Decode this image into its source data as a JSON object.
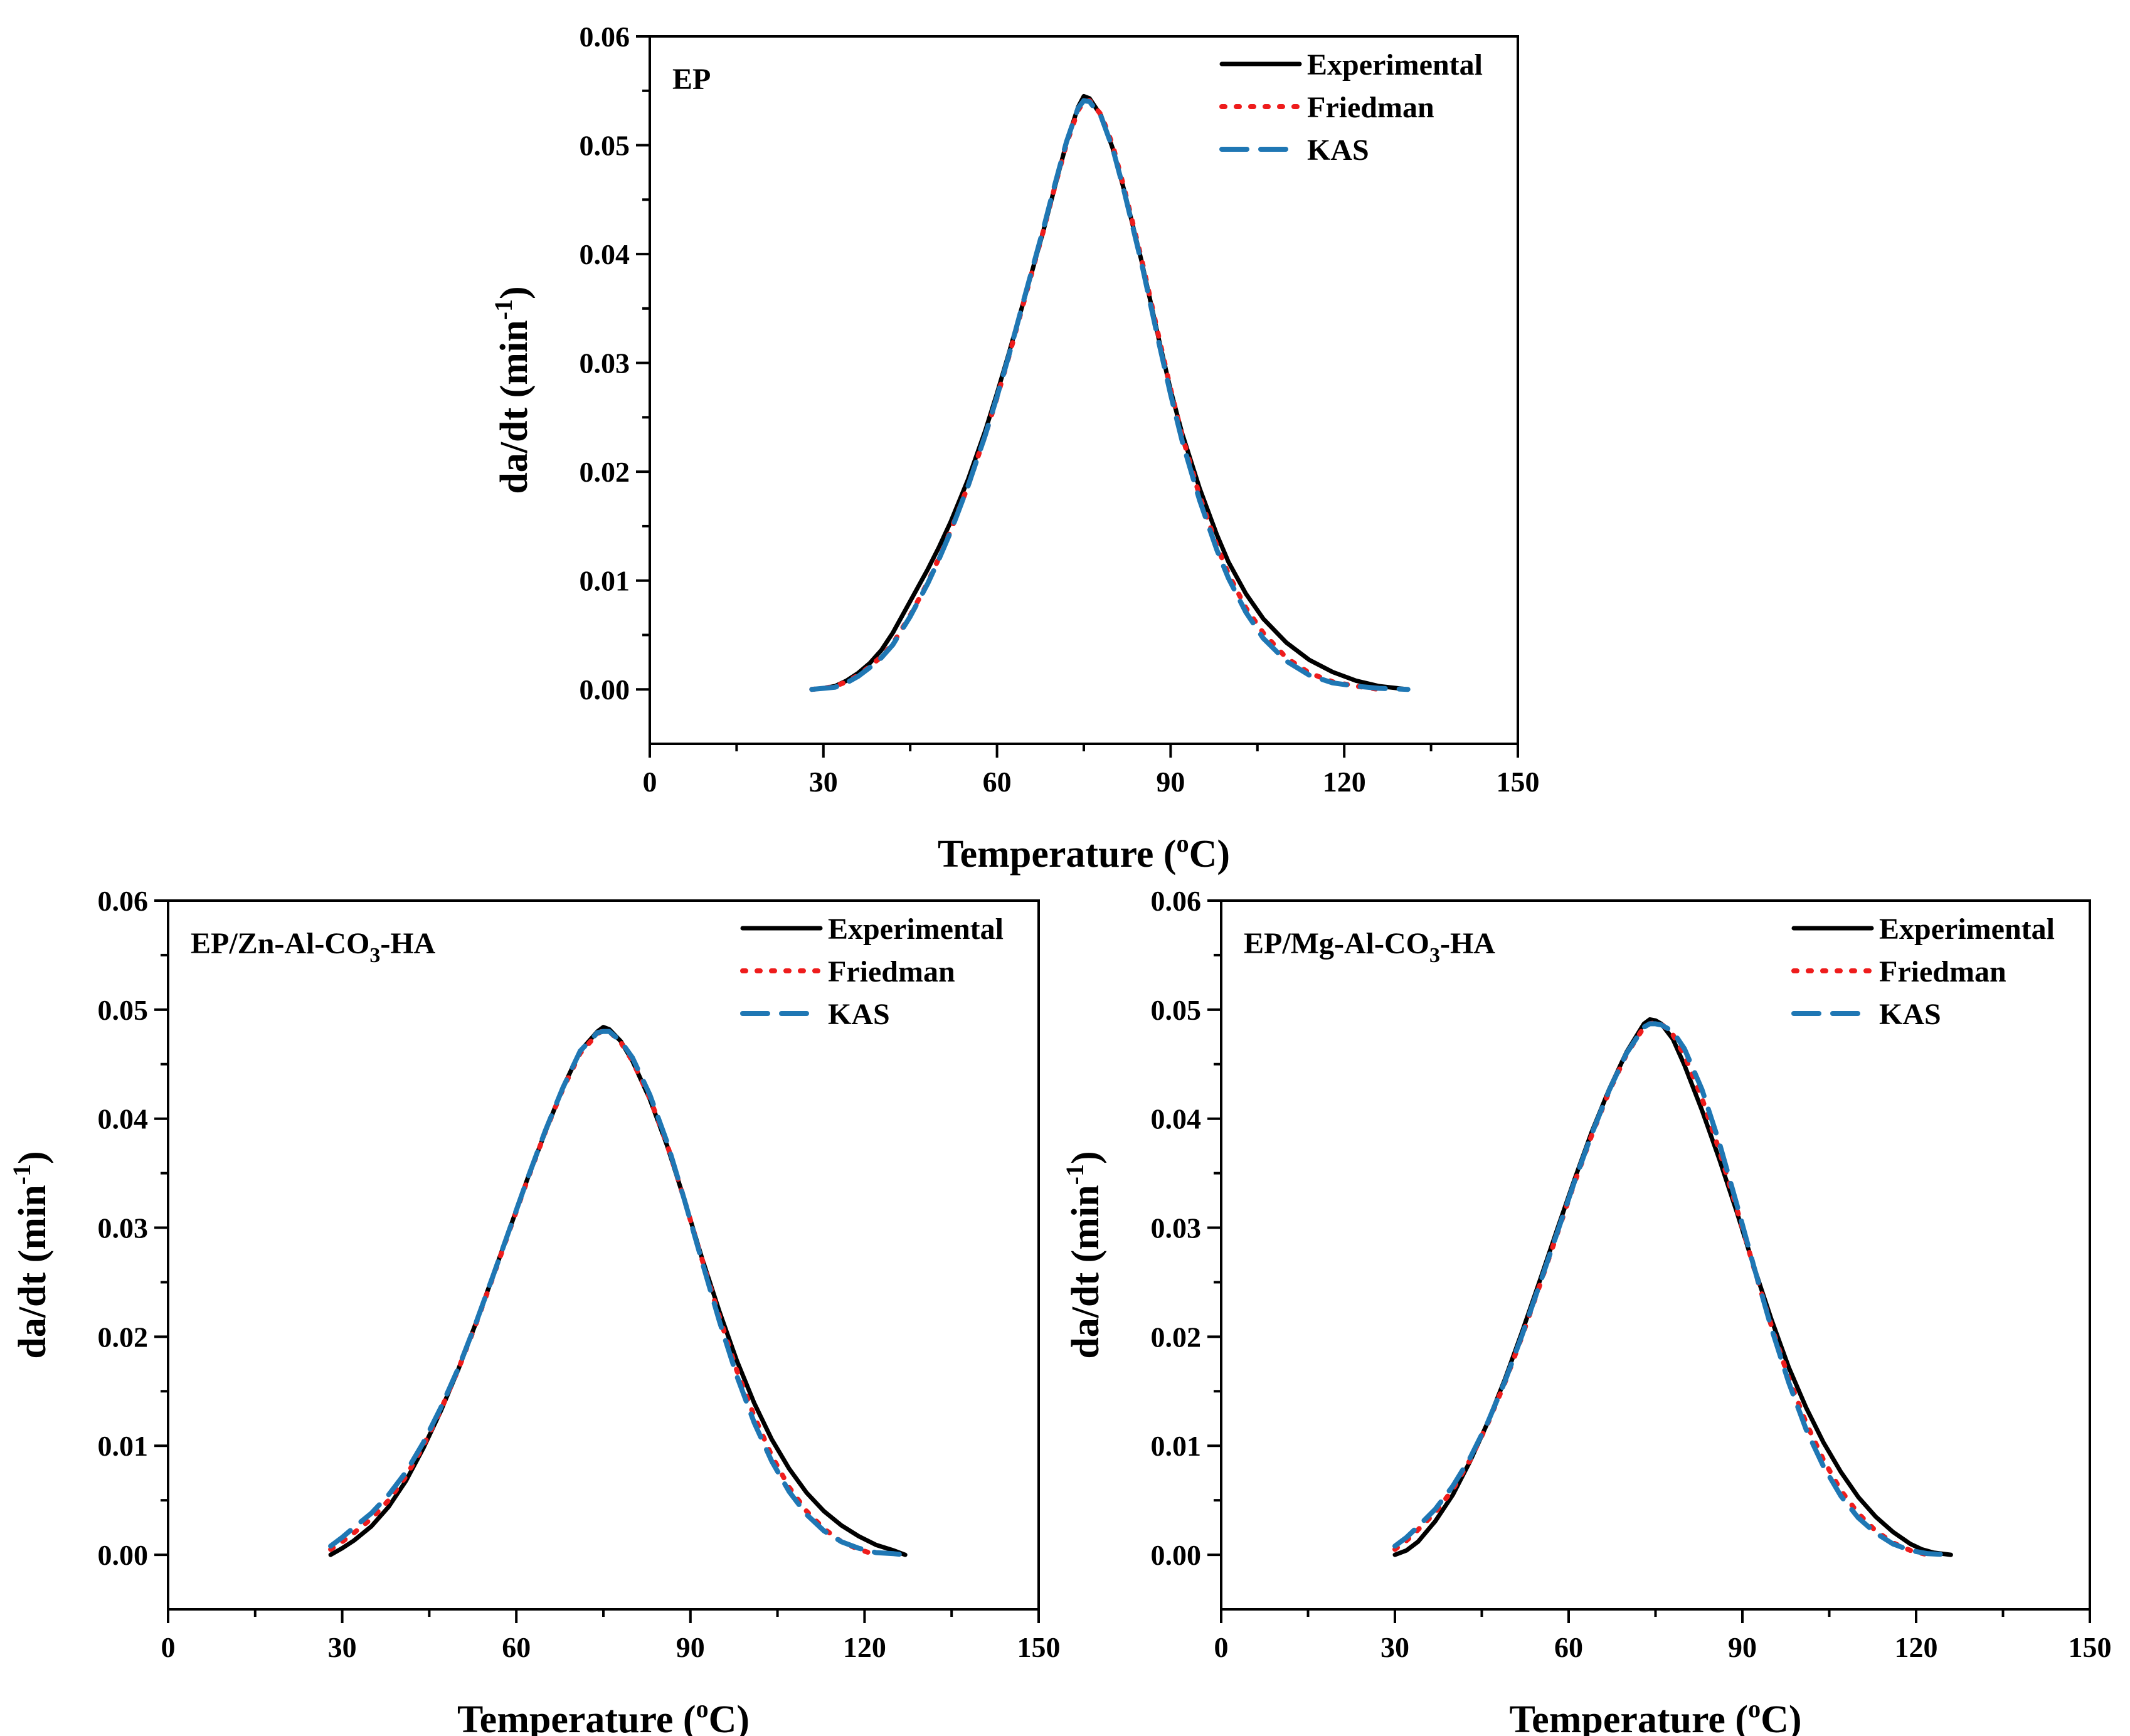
{
  "chart_data": [
    {
      "type": "line",
      "title": "EP",
      "xlabel": "Temperature (oC)",
      "xlabel_parts": {
        "main": "Temperature (",
        "sup": "o",
        "tail": "C)"
      },
      "ylabel": "da/dt (min-1)",
      "ylabel_parts": {
        "main": "da/dt (min",
        "sup": "-1",
        "tail": ")"
      },
      "xlim": [
        0,
        150
      ],
      "ylim": [
        -0.005,
        0.06
      ],
      "xticks": [
        "0",
        "30",
        "60",
        "90",
        "120",
        "150"
      ],
      "yticks": [
        "0.00",
        "0.01",
        "0.02",
        "0.03",
        "0.04",
        "0.05",
        "0.06"
      ],
      "legend_position": "top-right",
      "series": [
        {
          "name": "Experimental",
          "color": "#000000",
          "style": "solid",
          "x": [
            28,
            30,
            32,
            34,
            36,
            38,
            40,
            42,
            45,
            48,
            50,
            52,
            55,
            58,
            60,
            62,
            65,
            68,
            70,
            72,
            74,
            75,
            76,
            78,
            80,
            82,
            85,
            88,
            90,
            92,
            95,
            98,
            100,
            103,
            106,
            110,
            114,
            118,
            122,
            126,
            131
          ],
          "y": [
            0.0,
            0.0001,
            0.0003,
            0.0008,
            0.0015,
            0.0024,
            0.0036,
            0.0052,
            0.0081,
            0.011,
            0.0131,
            0.0154,
            0.0193,
            0.0238,
            0.0272,
            0.0308,
            0.0364,
            0.0421,
            0.0462,
            0.0502,
            0.0535,
            0.0545,
            0.0543,
            0.0527,
            0.0497,
            0.0458,
            0.0393,
            0.0321,
            0.0275,
            0.0235,
            0.0185,
            0.0142,
            0.0117,
            0.0088,
            0.0065,
            0.0043,
            0.0027,
            0.0016,
            0.0008,
            0.0003,
            0.0
          ]
        },
        {
          "name": "Friedman",
          "color": "#ee1c1c",
          "style": "dotted",
          "x": [
            28,
            30,
            32,
            34,
            36,
            38,
            40,
            42,
            45,
            48,
            50,
            52,
            55,
            58,
            60,
            62,
            65,
            68,
            70,
            72,
            74,
            75,
            76,
            78,
            80,
            82,
            85,
            88,
            90,
            92,
            95,
            98,
            100,
            103,
            106,
            110,
            114,
            118,
            122,
            126
          ],
          "y": [
            0.0,
            0.0001,
            0.0003,
            0.0007,
            0.0013,
            0.0021,
            0.003,
            0.0042,
            0.0068,
            0.0098,
            0.0121,
            0.0146,
            0.0187,
            0.0234,
            0.0268,
            0.0305,
            0.0363,
            0.0421,
            0.0462,
            0.0501,
            0.0532,
            0.054,
            0.0541,
            0.0528,
            0.05,
            0.046,
            0.0395,
            0.0323,
            0.0276,
            0.0233,
            0.0178,
            0.0132,
            0.0106,
            0.0075,
            0.0052,
            0.0029,
            0.0015,
            0.0007,
            0.0003,
            0.0
          ]
        },
        {
          "name": "KAS",
          "color": "#1f77b4",
          "style": "dashed",
          "x": [
            28,
            30,
            32,
            34,
            36,
            38,
            40,
            42,
            45,
            48,
            50,
            52,
            55,
            58,
            60,
            62,
            65,
            68,
            70,
            72,
            74,
            75,
            76,
            78,
            80,
            82,
            85,
            88,
            90,
            92,
            95,
            98,
            100,
            103,
            106,
            110,
            114,
            118,
            122,
            126,
            131
          ],
          "y": [
            0.0,
            0.0001,
            0.0002,
            0.0006,
            0.0012,
            0.002,
            0.0029,
            0.0041,
            0.0067,
            0.0097,
            0.012,
            0.0145,
            0.0187,
            0.0234,
            0.0269,
            0.0306,
            0.0365,
            0.0423,
            0.0464,
            0.0503,
            0.0534,
            0.0541,
            0.054,
            0.0526,
            0.0497,
            0.0457,
            0.0391,
            0.0318,
            0.0271,
            0.0228,
            0.0174,
            0.0128,
            0.0102,
            0.0071,
            0.0047,
            0.0026,
            0.0013,
            0.0006,
            0.0003,
            0.0001,
            0.0
          ]
        }
      ]
    },
    {
      "type": "line",
      "title": "EP/Zn-Al-CO3-HA",
      "title_parts": {
        "main": "EP/Zn-Al-CO",
        "sub": "3",
        "tail": "-HA"
      },
      "xlabel": "Temperature (oC)",
      "xlabel_parts": {
        "main": "Temperature (",
        "sup": "o",
        "tail": "C)"
      },
      "ylabel": "da/dt (min-1)",
      "ylabel_parts": {
        "main": "da/dt (min",
        "sup": "-1",
        "tail": ")"
      },
      "xlim": [
        0,
        150
      ],
      "ylim": [
        -0.005,
        0.06
      ],
      "xticks": [
        "0",
        "30",
        "60",
        "90",
        "120",
        "150"
      ],
      "yticks": [
        "0.00",
        "0.01",
        "0.02",
        "0.03",
        "0.04",
        "0.05",
        "0.06"
      ],
      "legend_position": "top-right",
      "series": [
        {
          "name": "Experimental",
          "color": "#000000",
          "style": "solid",
          "x": [
            28,
            30,
            32,
            35,
            38,
            41,
            44,
            47,
            50,
            53,
            56,
            59,
            62,
            65,
            68,
            71,
            74,
            75,
            76,
            78,
            80,
            83,
            86,
            89,
            92,
            95,
            98,
            101,
            104,
            107,
            110,
            113,
            116,
            119,
            122,
            125,
            127
          ],
          "y": [
            0.0,
            0.0006,
            0.0013,
            0.0026,
            0.0044,
            0.0068,
            0.0098,
            0.0132,
            0.017,
            0.0212,
            0.0256,
            0.0301,
            0.0346,
            0.0388,
            0.0428,
            0.0462,
            0.048,
            0.0484,
            0.0482,
            0.0471,
            0.0453,
            0.0418,
            0.0375,
            0.0325,
            0.0272,
            0.0223,
            0.0178,
            0.0139,
            0.0106,
            0.0079,
            0.0057,
            0.004,
            0.0027,
            0.0017,
            0.0009,
            0.0004,
            0.0
          ]
        },
        {
          "name": "Friedman",
          "color": "#ee1c1c",
          "style": "dotted",
          "x": [
            28,
            30,
            32,
            35,
            38,
            41,
            44,
            47,
            50,
            53,
            56,
            59,
            62,
            65,
            68,
            71,
            74,
            75,
            76,
            78,
            80,
            83,
            86,
            89,
            92,
            95,
            98,
            101,
            104,
            107,
            110,
            113,
            116,
            119,
            122
          ],
          "y": [
            0.0005,
            0.0012,
            0.002,
            0.0033,
            0.005,
            0.0072,
            0.01,
            0.0133,
            0.017,
            0.0211,
            0.0255,
            0.03,
            0.0345,
            0.0388,
            0.0427,
            0.046,
            0.0478,
            0.0481,
            0.048,
            0.047,
            0.0453,
            0.0419,
            0.0376,
            0.0325,
            0.0271,
            0.0218,
            0.0169,
            0.0127,
            0.0091,
            0.0062,
            0.004,
            0.0024,
            0.0012,
            0.0005,
            0.0
          ]
        },
        {
          "name": "KAS",
          "color": "#1f77b4",
          "style": "dashed",
          "x": [
            28,
            30,
            32,
            35,
            38,
            41,
            44,
            47,
            50,
            53,
            56,
            59,
            62,
            65,
            68,
            71,
            74,
            75,
            76,
            78,
            80,
            83,
            86,
            89,
            92,
            95,
            98,
            101,
            104,
            107,
            110,
            113,
            116,
            119,
            122,
            125,
            127
          ],
          "y": [
            0.0008,
            0.0016,
            0.0025,
            0.0038,
            0.0055,
            0.0076,
            0.0103,
            0.0135,
            0.0171,
            0.0212,
            0.0256,
            0.0301,
            0.0346,
            0.0389,
            0.0428,
            0.0462,
            0.0479,
            0.048,
            0.048,
            0.0471,
            0.0456,
            0.0422,
            0.0378,
            0.0325,
            0.0269,
            0.0214,
            0.0164,
            0.0121,
            0.0086,
            0.0058,
            0.0037,
            0.0022,
            0.0012,
            0.0006,
            0.0002,
            0.0001,
            0.0
          ]
        }
      ]
    },
    {
      "type": "line",
      "title": "EP/Mg-Al-CO3-HA",
      "title_parts": {
        "main": "EP/Mg-Al-CO",
        "sub": "3",
        "tail": "-HA"
      },
      "xlabel": "Temperature (oC)",
      "xlabel_parts": {
        "main": "Temperature (",
        "sup": "o",
        "tail": "C)"
      },
      "ylabel": "da/dt (min-1)",
      "ylabel_parts": {
        "main": "da/dt (min",
        "sup": "-1",
        "tail": ")"
      },
      "xlim": [
        0,
        150
      ],
      "ylim": [
        -0.005,
        0.06
      ],
      "xticks": [
        "0",
        "30",
        "60",
        "90",
        "120",
        "150"
      ],
      "yticks": [
        "0.00",
        "0.01",
        "0.02",
        "0.03",
        "0.04",
        "0.05",
        "0.06"
      ],
      "legend_position": "top-right",
      "series": [
        {
          "name": "Experimental",
          "color": "#000000",
          "style": "solid",
          "x": [
            30,
            32,
            34,
            37,
            40,
            43,
            46,
            49,
            52,
            55,
            58,
            61,
            64,
            67,
            70,
            73,
            74,
            75,
            76,
            78,
            80,
            83,
            86,
            89,
            92,
            95,
            98,
            101,
            104,
            107,
            110,
            113,
            116,
            119,
            121,
            123,
            126
          ],
          "y": [
            0.0,
            0.0004,
            0.0012,
            0.0031,
            0.0055,
            0.0086,
            0.0121,
            0.0161,
            0.0205,
            0.0251,
            0.0298,
            0.0344,
            0.0388,
            0.0427,
            0.0461,
            0.0487,
            0.0491,
            0.049,
            0.0487,
            0.0473,
            0.0449,
            0.0408,
            0.0363,
            0.0315,
            0.0264,
            0.0216,
            0.0172,
            0.0135,
            0.0103,
            0.0076,
            0.0053,
            0.0035,
            0.0021,
            0.001,
            0.0005,
            0.0002,
            0.0
          ]
        },
        {
          "name": "Friedman",
          "color": "#ee1c1c",
          "style": "dotted",
          "x": [
            30,
            32,
            34,
            37,
            40,
            43,
            46,
            49,
            52,
            55,
            58,
            61,
            64,
            67,
            70,
            73,
            74,
            75,
            76,
            78,
            80,
            83,
            86,
            89,
            92,
            95,
            98,
            101,
            104,
            107,
            110,
            113,
            116,
            119,
            122
          ],
          "y": [
            0.0005,
            0.0013,
            0.0023,
            0.0039,
            0.006,
            0.0087,
            0.012,
            0.0158,
            0.0201,
            0.0247,
            0.0294,
            0.0341,
            0.0385,
            0.0425,
            0.0459,
            0.0484,
            0.0487,
            0.0488,
            0.0487,
            0.0477,
            0.0458,
            0.0419,
            0.0371,
            0.0318,
            0.0263,
            0.021,
            0.0162,
            0.0121,
            0.0087,
            0.0059,
            0.0038,
            0.0022,
            0.0011,
            0.0004,
            0.0
          ]
        },
        {
          "name": "KAS",
          "color": "#1f77b4",
          "style": "dashed",
          "x": [
            30,
            32,
            34,
            37,
            40,
            43,
            46,
            49,
            52,
            55,
            58,
            61,
            64,
            67,
            70,
            73,
            74,
            75,
            76,
            78,
            80,
            83,
            86,
            89,
            92,
            95,
            98,
            101,
            104,
            107,
            110,
            113,
            116,
            119,
            122,
            126
          ],
          "y": [
            0.0008,
            0.0016,
            0.0026,
            0.0042,
            0.0063,
            0.0089,
            0.0121,
            0.0159,
            0.0202,
            0.0248,
            0.0295,
            0.0342,
            0.0386,
            0.0426,
            0.046,
            0.0484,
            0.0487,
            0.0487,
            0.0486,
            0.048,
            0.0464,
            0.0427,
            0.0378,
            0.0322,
            0.0264,
            0.0208,
            0.0158,
            0.0115,
            0.0081,
            0.0054,
            0.0034,
            0.002,
            0.001,
            0.0004,
            0.0001,
            0.0
          ]
        }
      ]
    }
  ]
}
